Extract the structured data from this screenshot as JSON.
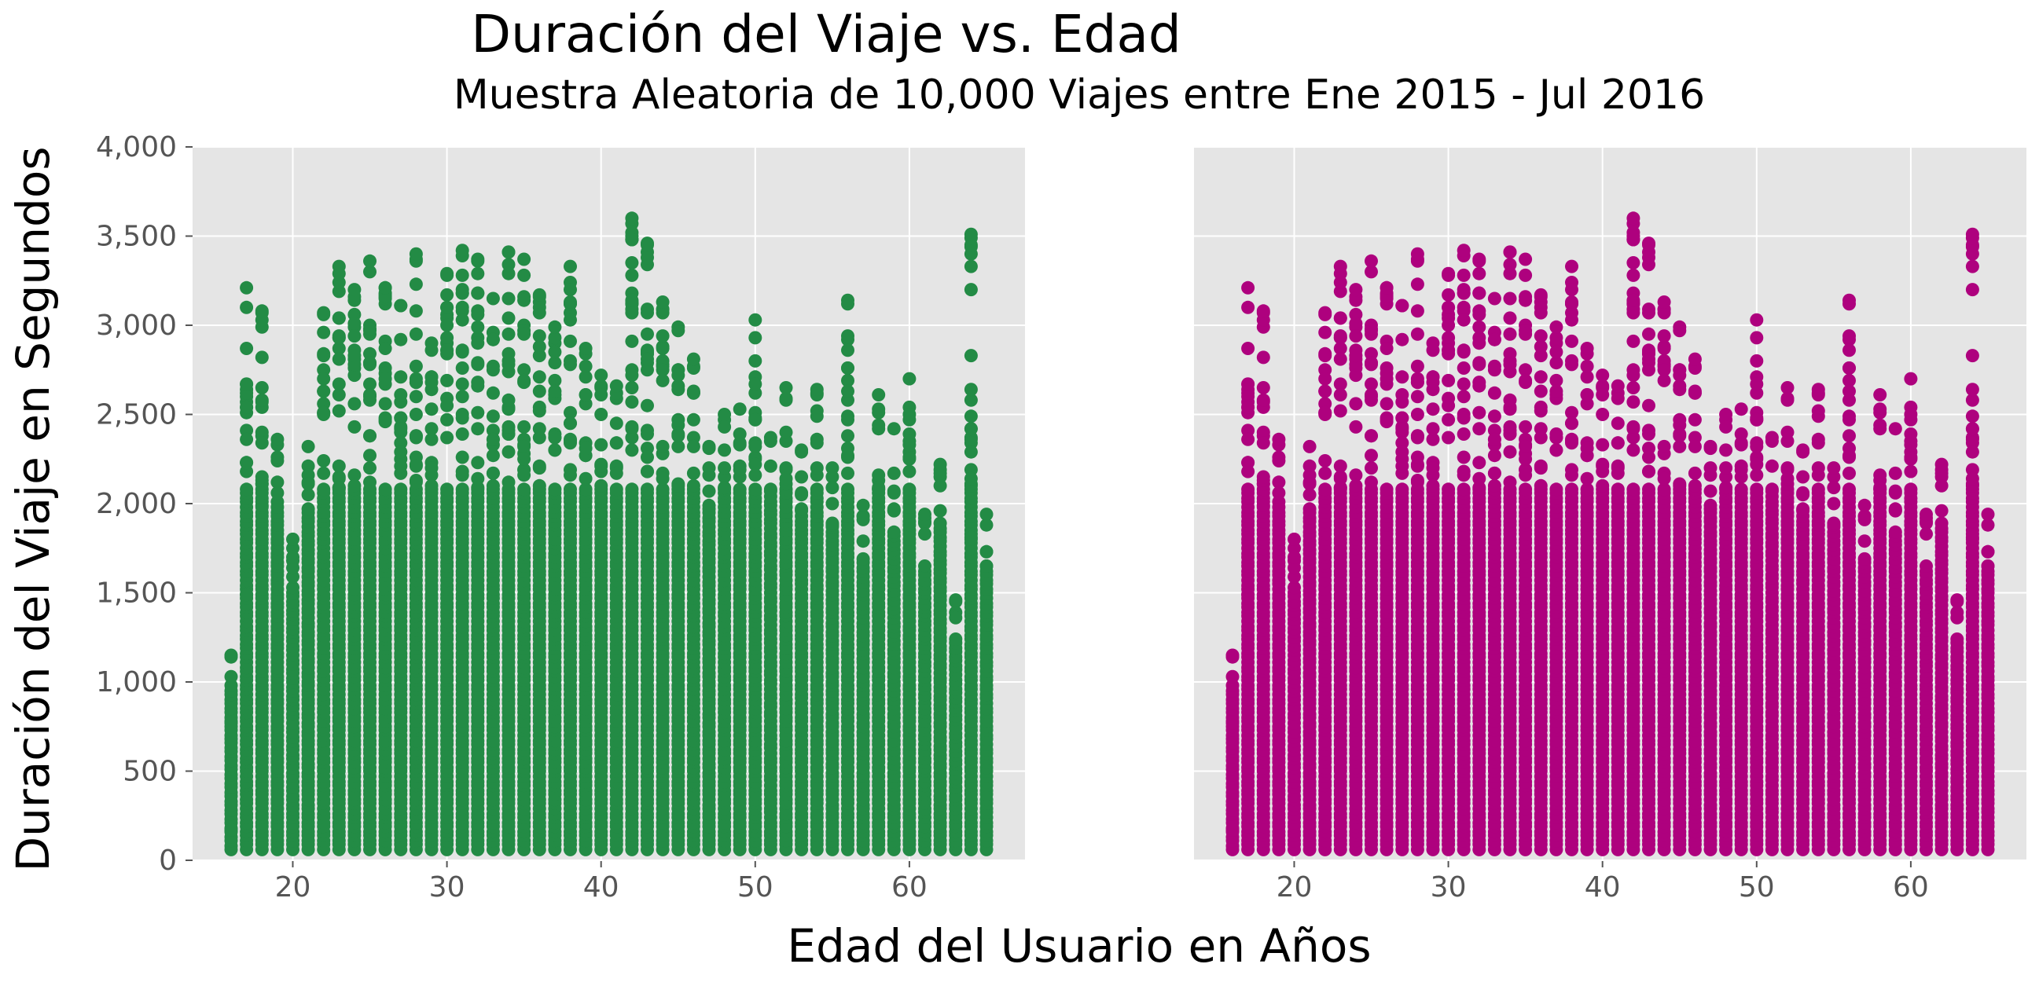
{
  "chart_data": {
    "type": "scatter",
    "title": "Duración del Viaje vs. Edad",
    "subtitle": "Muestra Aleatoria de 10,000 Viajes entre Ene 2015 - Jul 2016",
    "xlabel": "Edad del Usuario en Años",
    "ylabel": "Duración del Viaje en Segundos",
    "xlim": [
      13.5,
      67.5
    ],
    "ylim": [
      0,
      4000
    ],
    "xticks": [
      20,
      30,
      40,
      50,
      60
    ],
    "xtick_labels": [
      "20",
      "30",
      "40",
      "50",
      "60"
    ],
    "yticks": [
      0,
      500,
      1000,
      1500,
      2000,
      2500,
      3000,
      3500,
      4000
    ],
    "ytick_labels": [
      "0",
      "500",
      "1,000",
      "1,500",
      "2,000",
      "2,500",
      "3,000",
      "3,500",
      "4,000"
    ],
    "grid": true,
    "panels": [
      {
        "color": "#238b45",
        "show_y_ticks": true
      },
      {
        "color": "#ae017e",
        "show_y_ticks": false
      }
    ],
    "age_max_duration": [
      [
        16,
        1150
      ],
      [
        17,
        3210
      ],
      [
        18,
        3080
      ],
      [
        19,
        2360
      ],
      [
        20,
        1800
      ],
      [
        21,
        2320
      ],
      [
        22,
        3070
      ],
      [
        23,
        3330
      ],
      [
        24,
        3200
      ],
      [
        25,
        3360
      ],
      [
        26,
        3210
      ],
      [
        27,
        3110
      ],
      [
        28,
        3400
      ],
      [
        29,
        2900
      ],
      [
        30,
        3290
      ],
      [
        31,
        3420
      ],
      [
        32,
        3370
      ],
      [
        33,
        3150
      ],
      [
        34,
        3410
      ],
      [
        35,
        3370
      ],
      [
        36,
        3170
      ],
      [
        37,
        2990
      ],
      [
        38,
        3330
      ],
      [
        39,
        2870
      ],
      [
        40,
        2720
      ],
      [
        41,
        2660
      ],
      [
        42,
        3600
      ],
      [
        43,
        3460
      ],
      [
        44,
        3130
      ],
      [
        45,
        2990
      ],
      [
        46,
        2810
      ],
      [
        47,
        2320
      ],
      [
        48,
        2500
      ],
      [
        49,
        2530
      ],
      [
        50,
        3030
      ],
      [
        51,
        2370
      ],
      [
        52,
        2650
      ],
      [
        53,
        2300
      ],
      [
        54,
        2640
      ],
      [
        55,
        2200
      ],
      [
        56,
        3140
      ],
      [
        57,
        1990
      ],
      [
        58,
        2610
      ],
      [
        59,
        2170
      ],
      [
        60,
        2700
      ],
      [
        61,
        1940
      ],
      [
        62,
        2220
      ],
      [
        63,
        1460
      ],
      [
        64,
        3510
      ],
      [
        65,
        1940
      ]
    ],
    "outliers": [
      [
        16,
        770
      ],
      [
        16,
        170
      ],
      [
        17,
        1490
      ],
      [
        18,
        2340
      ],
      [
        18,
        1990
      ],
      [
        20,
        1700
      ],
      [
        42,
        3480
      ],
      [
        42,
        3140
      ],
      [
        43,
        3450
      ],
      [
        50,
        2800
      ],
      [
        56,
        2270
      ],
      [
        59,
        2420
      ],
      [
        60,
        2330
      ],
      [
        64,
        1810
      ]
    ],
    "min_duration": 60
  }
}
